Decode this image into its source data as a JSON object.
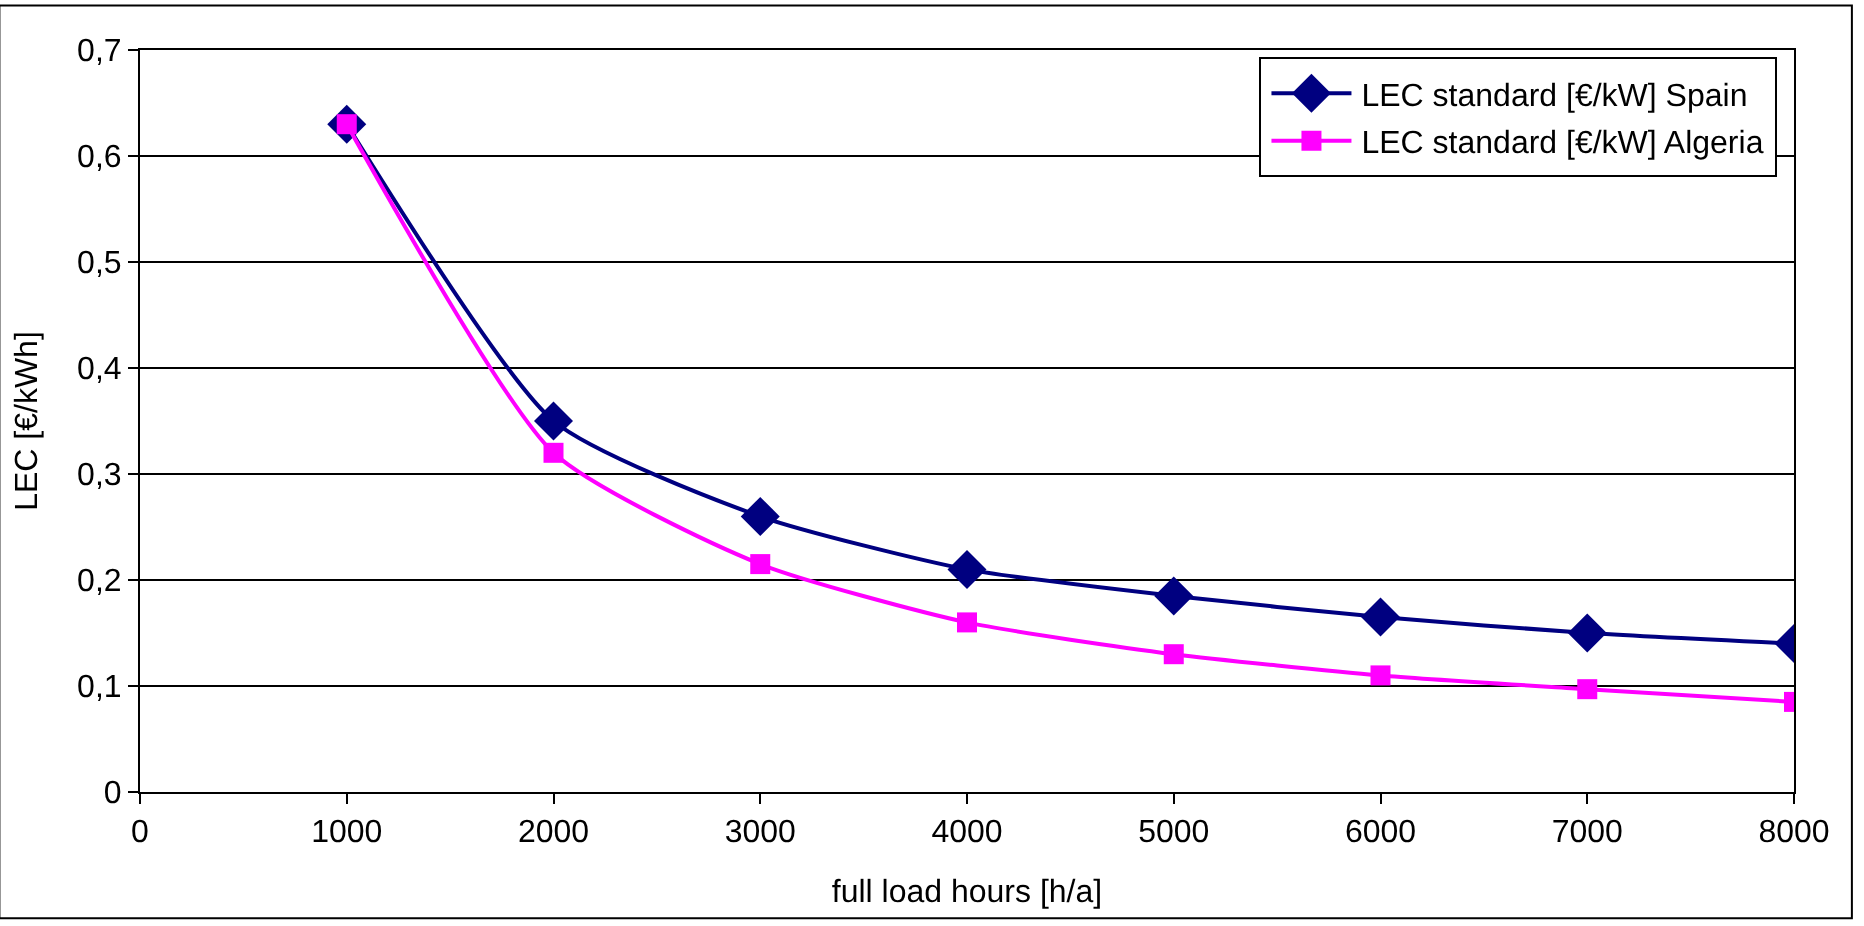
{
  "chart_data": {
    "type": "line",
    "xlabel": "full load hours [h/a]",
    "ylabel": "LEC [€/kWh]",
    "x": [
      1000,
      2000,
      3000,
      4000,
      5000,
      6000,
      7000,
      8000
    ],
    "series": [
      {
        "name": "LEC standard [€/kW] Spain",
        "color": "#000080",
        "marker": "diamond",
        "values": [
          0.63,
          0.35,
          0.26,
          0.21,
          0.185,
          0.165,
          0.15,
          0.14
        ]
      },
      {
        "name": "LEC standard [€/kW] Algeria",
        "color": "#ff00ff",
        "marker": "square",
        "values": [
          0.63,
          0.32,
          0.215,
          0.16,
          0.13,
          0.11,
          0.097,
          0.085
        ]
      }
    ],
    "xlim": [
      0,
      8000
    ],
    "xticks": [
      0,
      1000,
      2000,
      3000,
      4000,
      5000,
      6000,
      7000,
      8000
    ],
    "ylim": [
      0,
      0.7
    ],
    "yticks": [
      {
        "value": 0,
        "label": "0"
      },
      {
        "value": 0.1,
        "label": "0,1"
      },
      {
        "value": 0.2,
        "label": "0,2"
      },
      {
        "value": 0.3,
        "label": "0,3"
      },
      {
        "value": 0.4,
        "label": "0,4"
      },
      {
        "value": 0.5,
        "label": "0,5"
      },
      {
        "value": 0.6,
        "label": "0,6"
      },
      {
        "value": 0.7,
        "label": "0,7"
      }
    ],
    "grid": "y",
    "legend": "top right",
    "line_style": "solid"
  }
}
